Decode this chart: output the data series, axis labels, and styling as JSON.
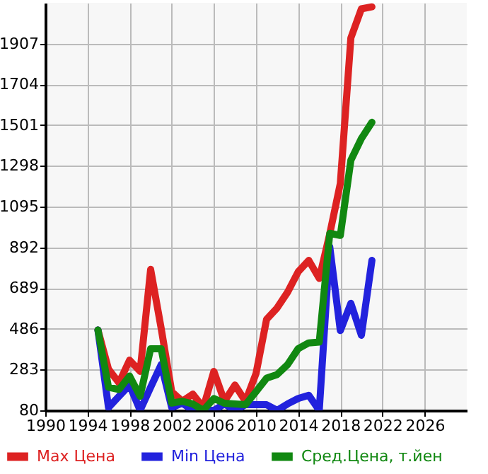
{
  "chart_data": {
    "type": "line",
    "x": [
      1995,
      1996,
      1997,
      1998,
      1999,
      2000,
      2001,
      2002,
      2003,
      2004,
      2005,
      2006,
      2007,
      2008,
      2009,
      2010,
      2011,
      2012,
      2013,
      2014,
      2015,
      2016,
      2017,
      2018,
      2019,
      2020,
      2021
    ],
    "series": [
      {
        "name": "Max Цена",
        "color": "#dd2222",
        "values": [
          480,
          285,
          217,
          330,
          274,
          782,
          488,
          173,
          125,
          161,
          94,
          274,
          125,
          206,
          125,
          263,
          533,
          590,
          669,
          770,
          827,
          737,
          960,
          1210,
          1935,
          2080,
          2090
        ]
      },
      {
        "name": "Min Цена",
        "color": "#2222dd",
        "values": [
          480,
          94,
          150,
          206,
          80,
          195,
          308,
          94,
          116,
          80,
          80,
          80,
          112,
          80,
          108,
          108,
          108,
          80,
          112,
          139,
          155,
          80,
          894,
          477,
          613,
          454,
          827
        ]
      },
      {
        "name": "Сред.Цена, т.йен",
        "color": "#118811",
        "values": [
          480,
          195,
          184,
          251,
          150,
          387,
          387,
          116,
          125,
          112,
          80,
          139,
          115,
          112,
          108,
          173,
          240,
          258,
          308,
          387,
          416,
          420,
          962,
          951,
          1326,
          1434,
          1515
        ]
      }
    ],
    "xlim": [
      1990,
      2030
    ],
    "xticks": [
      1990,
      1994,
      1998,
      2002,
      2006,
      2010,
      2014,
      2018,
      2022,
      2026
    ],
    "ylim": [
      80,
      2110
    ],
    "yticks": [
      80,
      283,
      486,
      689,
      892,
      1095,
      1298,
      1501,
      1704,
      1907
    ],
    "grid": true,
    "legend": "bottom",
    "marker": "none",
    "line_style": "solid"
  }
}
